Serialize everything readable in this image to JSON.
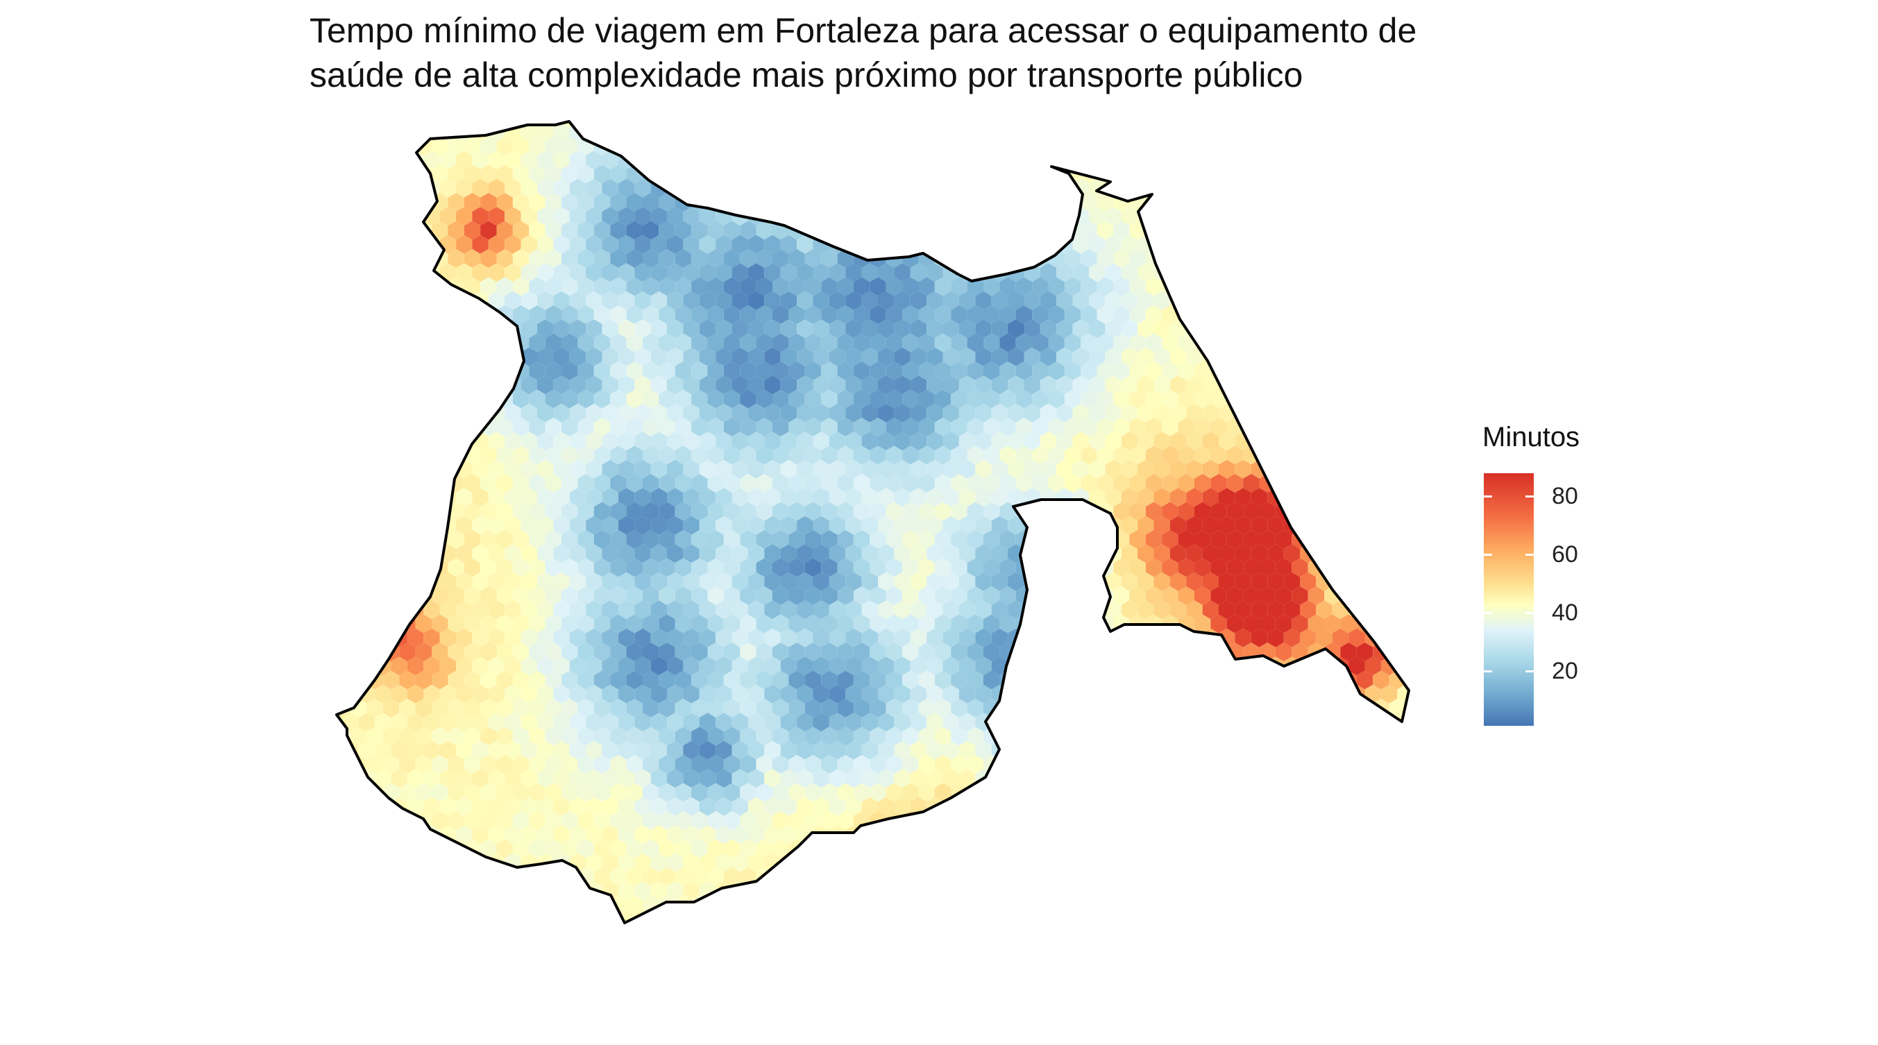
{
  "title": {
    "line1": "Tempo mínimo de viagem em Fortaleza para acessar o equipamento de",
    "line2": "saúde de alta complexidade mais próximo por transporte público"
  },
  "legend": {
    "title": "Minutos",
    "ticks": [
      "80",
      "60",
      "40",
      "20"
    ],
    "tick_values": [
      80,
      60,
      40,
      20
    ],
    "range": [
      1,
      88
    ],
    "colors": [
      "#4575b4",
      "#74add1",
      "#abd9e9",
      "#e0f3f8",
      "#ffffbf",
      "#fee090",
      "#fdae61",
      "#f46d43",
      "#d73027"
    ]
  },
  "map_data": {
    "type": "hexbin-choropleth",
    "variable": "Minutos",
    "boundary_color": "#000000",
    "hotspots": {
      "low_travel_time_areas": [
        "center-north",
        "central",
        "south-east center"
      ],
      "high_travel_time_areas": [
        "far east coast",
        "south tip",
        "west edge"
      ]
    }
  }
}
